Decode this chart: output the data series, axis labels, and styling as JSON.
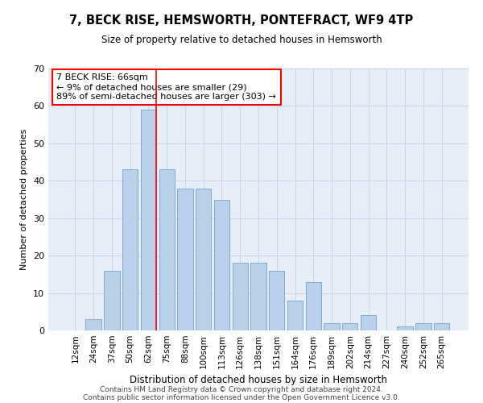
{
  "title1": "7, BECK RISE, HEMSWORTH, PONTEFRACT, WF9 4TP",
  "title2": "Size of property relative to detached houses in Hemsworth",
  "xlabel": "Distribution of detached houses by size in Hemsworth",
  "ylabel": "Number of detached properties",
  "categories": [
    "12sqm",
    "24sqm",
    "37sqm",
    "50sqm",
    "62sqm",
    "75sqm",
    "88sqm",
    "100sqm",
    "113sqm",
    "126sqm",
    "138sqm",
    "151sqm",
    "164sqm",
    "176sqm",
    "189sqm",
    "202sqm",
    "214sqm",
    "227sqm",
    "240sqm",
    "252sqm",
    "265sqm"
  ],
  "values": [
    0,
    3,
    16,
    43,
    59,
    43,
    38,
    38,
    35,
    18,
    18,
    16,
    8,
    13,
    2,
    2,
    4,
    0,
    1,
    2,
    2
  ],
  "bar_color": "#b8d0ea",
  "bar_edge_color": "#7aadd4",
  "grid_color": "#c8d4e8",
  "background_color": "#e8eef8",
  "annotation_text": "7 BECK RISE: 66sqm\n← 9% of detached houses are smaller (29)\n89% of semi-detached houses are larger (303) →",
  "annotation_box_color": "white",
  "annotation_box_edge": "red",
  "footer1": "Contains HM Land Registry data © Crown copyright and database right 2024.",
  "footer2": "Contains public sector information licensed under the Open Government Licence v3.0.",
  "ylim": [
    0,
    70
  ],
  "yticks": [
    0,
    10,
    20,
    30,
    40,
    50,
    60,
    70
  ],
  "property_bin_index": 4
}
